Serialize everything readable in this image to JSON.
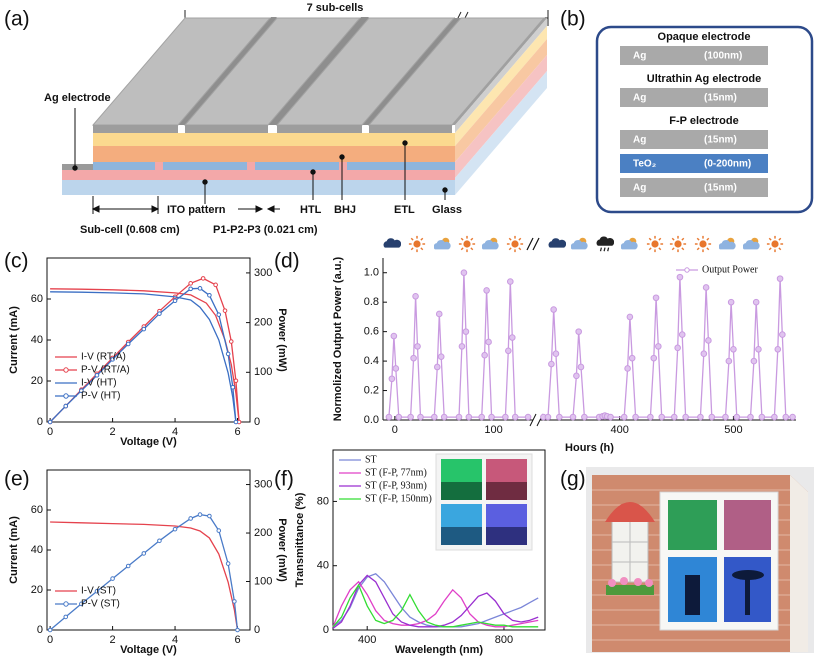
{
  "panels": {
    "a": {
      "label": "(a)",
      "span": "7 sub-cells",
      "ag": "Ag electrode",
      "ito": "ITO pattern",
      "htl": "HTL",
      "bhj": "BHJ",
      "etl": "ETL",
      "glass": "Glass",
      "subcell": "Sub-cell (0.608 cm)",
      "p123": "P1-P2-P3 (0.021 cm)"
    },
    "b": {
      "label": "(b)",
      "groups": [
        {
          "title": "Opaque electrode",
          "layers": [
            {
              "material": "Ag",
              "thickness": "(100nm)",
              "color": "#a9a9a9"
            }
          ]
        },
        {
          "title": "Ultrathin Ag electrode",
          "layers": [
            {
              "material": "Ag",
              "thickness": "(15nm)",
              "color": "#a9a9a9"
            }
          ]
        },
        {
          "title": "F-P electrode",
          "layers": [
            {
              "material": "Ag",
              "thickness": "(15nm)",
              "color": "#a9a9a9"
            },
            {
              "material": "TeO₂",
              "thickness": "(0-200nm)",
              "color": "#4b80c3"
            },
            {
              "material": "Ag",
              "thickness": "(15nm)",
              "color": "#a9a9a9"
            }
          ]
        }
      ]
    },
    "g": {
      "label": "(g)"
    }
  },
  "chart_data": [
    {
      "type": "line",
      "panel": "(c)",
      "xlabel": "Voltage (V)",
      "ylabel": "Current (mA)",
      "y2label": "Power (mW)",
      "xlim": [
        -0.1,
        6.4
      ],
      "xticks": [
        0,
        2,
        4,
        6
      ],
      "ylim": [
        0,
        80
      ],
      "yticks": [
        0,
        20,
        40,
        60
      ],
      "y2lim": [
        0,
        330
      ],
      "y2ticks": [
        0,
        100,
        200,
        300
      ],
      "legend": "lower left",
      "series": [
        {
          "name": "I-V (RT/A)",
          "color": "#e5424d",
          "x": [
            0,
            1,
            2,
            3,
            4,
            4.5,
            5,
            5.3,
            5.6,
            5.8,
            5.95,
            6.05
          ],
          "values": [
            65,
            64.8,
            64.5,
            64,
            63,
            62,
            58,
            52,
            40,
            28,
            14,
            0
          ]
        },
        {
          "name": "P-V (RT/A)",
          "color": "#e5424d",
          "marker": "circle",
          "axis": "y2",
          "x": [
            0,
            0.5,
            1,
            1.5,
            2,
            2.5,
            3,
            3.5,
            4,
            4.5,
            4.9,
            5.3,
            5.6,
            5.8,
            5.95,
            6.05
          ],
          "values": [
            0,
            32,
            65,
            97,
            129,
            161,
            192,
            223,
            252,
            279,
            289,
            276,
            224,
            162,
            83,
            0
          ]
        },
        {
          "name": "I-V (HT)",
          "color": "#3b6fc4",
          "x": [
            0,
            1,
            2,
            3,
            4,
            4.5,
            4.8,
            5.1,
            5.4,
            5.7,
            5.85,
            5.95
          ],
          "values": [
            63.5,
            63.3,
            63,
            62.5,
            61,
            59.5,
            56,
            50,
            40,
            24,
            12,
            0
          ]
        },
        {
          "name": "P-V (HT)",
          "color": "#3b6fc4",
          "marker": "circle",
          "axis": "y2",
          "x": [
            0,
            0.5,
            1,
            1.5,
            2,
            2.5,
            3,
            3.5,
            4,
            4.5,
            4.8,
            5.1,
            5.4,
            5.7,
            5.85,
            5.95
          ],
          "values": [
            0,
            32,
            63,
            94,
            126,
            157,
            187,
            218,
            244,
            268,
            269,
            255,
            216,
            137,
            70,
            0
          ]
        }
      ]
    },
    {
      "type": "line",
      "panel": "(d)",
      "xlabel": "Hours (h)",
      "ylabel": "Normolized Output Power (a.u.)",
      "xlim": [
        -12,
        555
      ],
      "x_break": [
        140,
        330
      ],
      "xticks": [
        0,
        100,
        400,
        500
      ],
      "ylim": [
        0,
        1.1
      ],
      "yticks": [
        {
          "value": 0,
          "label": "0.0"
        },
        0.2,
        0.4,
        0.6,
        0.8,
        {
          "value": 1,
          "label": "1.0"
        }
      ],
      "legend": "upper right",
      "x": [
        -6,
        -3,
        -1,
        1,
        4,
        16,
        19,
        21,
        23,
        26,
        40,
        43,
        45,
        47,
        50,
        65,
        68,
        70,
        72,
        75,
        88,
        91,
        93,
        95,
        98,
        112,
        115,
        117,
        119,
        122,
        135,
        235,
        333,
        337,
        340,
        342,
        344,
        347,
        359,
        362,
        364,
        366,
        369,
        382,
        385,
        387,
        389,
        392,
        404,
        407,
        409,
        411,
        414,
        427,
        430,
        432,
        434,
        437,
        448,
        451,
        453,
        455,
        458,
        471,
        474,
        476,
        478,
        481,
        493,
        496,
        498,
        500,
        503,
        515,
        518,
        520,
        522,
        525,
        536,
        539,
        541,
        543,
        546,
        552
      ],
      "series": [
        {
          "name": "Output Power",
          "color": "#c99ae0",
          "marker": "circle",
          "values": [
            0.02,
            0.28,
            0.57,
            0.35,
            0.02,
            0.02,
            0.42,
            0.84,
            0.5,
            0.02,
            0.02,
            0.36,
            0.72,
            0.43,
            0.02,
            0.02,
            0.5,
            1.0,
            0.6,
            0.02,
            0.02,
            0.44,
            0.88,
            0.53,
            0.02,
            0.02,
            0.47,
            0.94,
            0.56,
            0.02,
            0.02,
            null,
            0.02,
            0.02,
            0.38,
            0.75,
            0.45,
            0.02,
            0.02,
            0.3,
            0.6,
            0.36,
            0.02,
            0.02,
            0.025,
            0.03,
            0.025,
            0.02,
            0.02,
            0.35,
            0.7,
            0.42,
            0.02,
            0.02,
            0.42,
            0.83,
            0.5,
            0.02,
            0.02,
            0.49,
            0.97,
            0.58,
            0.02,
            0.02,
            0.45,
            0.9,
            0.54,
            0.02,
            0.02,
            0.4,
            0.8,
            0.48,
            0.02,
            0.02,
            0.4,
            0.8,
            0.48,
            0.02,
            0.02,
            0.48,
            0.96,
            0.58,
            0.02,
            0.02
          ]
        }
      ]
    },
    {
      "type": "line",
      "panel": "(e)",
      "xlabel": "Voltage (V)",
      "ylabel": "Current (mA)",
      "y2label": "Power (mW)",
      "xlim": [
        -0.1,
        6.4
      ],
      "xticks": [
        0,
        2,
        4,
        6
      ],
      "ylim": [
        0,
        80
      ],
      "yticks": [
        0,
        20,
        40,
        60
      ],
      "y2lim": [
        0,
        330
      ],
      "y2ticks": [
        0,
        100,
        200,
        300
      ],
      "legend": "lower left",
      "series": [
        {
          "name": "I-V (ST)",
          "color": "#e5424d",
          "x": [
            0,
            1,
            2,
            3,
            4,
            4.5,
            4.8,
            5.1,
            5.4,
            5.7,
            5.9,
            6.0
          ],
          "values": [
            54,
            53.6,
            53.2,
            52.8,
            52,
            51,
            49.5,
            46,
            38,
            24,
            10,
            0
          ]
        },
        {
          "name": "P-V (ST)",
          "color": "#4a7bc8",
          "marker": "circle",
          "axis": "y2",
          "x": [
            0,
            0.5,
            1,
            1.5,
            2,
            2.5,
            3,
            3.5,
            4,
            4.5,
            4.8,
            5.1,
            5.4,
            5.7,
            5.9,
            6.0
          ],
          "values": [
            0,
            27,
            54,
            80,
            106,
            132,
            158,
            184,
            208,
            230,
            238,
            235,
            205,
            137,
            59,
            0
          ]
        }
      ]
    },
    {
      "type": "line",
      "panel": "(f)",
      "xlabel": "Wavelength (nm)",
      "ylabel": "Transmittance (%)",
      "xlim": [
        300,
        920
      ],
      "xticks": [
        400,
        800
      ],
      "ylim": [
        0,
        112
      ],
      "yticks": [
        0,
        40,
        80
      ],
      "legend": "upper left",
      "x": [
        300,
        325,
        350,
        375,
        400,
        425,
        450,
        475,
        500,
        525,
        550,
        575,
        600,
        625,
        650,
        675,
        700,
        725,
        750,
        775,
        800,
        825,
        850,
        875,
        900
      ],
      "series": [
        {
          "name": "ST",
          "color": "#7b86d8",
          "values": [
            2,
            6,
            14,
            26,
            33,
            35,
            30,
            22,
            14,
            8,
            5,
            3,
            2,
            2,
            2,
            2,
            3,
            4,
            6,
            8,
            10,
            12,
            14,
            17,
            20
          ]
        },
        {
          "name": "ST (F-P, 77nm)",
          "color": "#e040c8",
          "values": [
            2,
            15,
            25,
            30,
            22,
            12,
            6,
            4,
            3,
            3,
            4,
            6,
            10,
            18,
            25,
            20,
            10,
            5,
            3,
            2,
            2,
            3,
            4,
            5,
            6
          ]
        },
        {
          "name": "ST (F-P, 93nm)",
          "color": "#9a2fd0",
          "values": [
            1,
            5,
            15,
            28,
            34,
            30,
            20,
            10,
            5,
            3,
            2,
            2,
            2,
            3,
            5,
            9,
            15,
            21,
            23,
            18,
            10,
            6,
            5,
            6,
            8
          ]
        },
        {
          "name": "ST (F-P, 150nm)",
          "color": "#33dd33",
          "values": [
            2,
            8,
            20,
            28,
            15,
            6,
            4,
            6,
            12,
            22,
            12,
            5,
            3,
            2,
            2,
            3,
            4,
            5,
            4,
            3,
            3,
            2,
            2,
            2,
            2
          ]
        }
      ]
    }
  ]
}
